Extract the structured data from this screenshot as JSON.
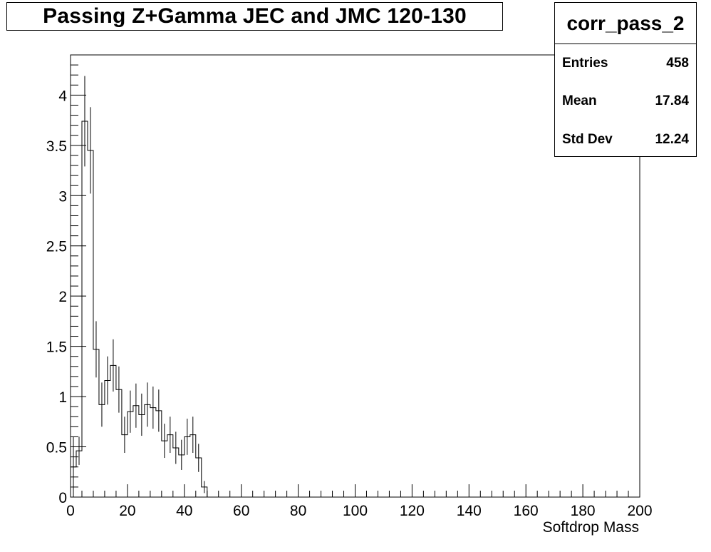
{
  "chart_data": {
    "type": "histogram",
    "title": "Passing Z+Gamma JEC and JMC 120-130",
    "xlabel": "Softdrop Mass",
    "ylabel": "",
    "xlim": [
      0,
      200
    ],
    "ylim": [
      0,
      4.4
    ],
    "bin_width": 2,
    "x_ticks": [
      0,
      20,
      40,
      60,
      80,
      100,
      120,
      140,
      160,
      180,
      200
    ],
    "y_ticks": [
      0,
      0.5,
      1,
      1.5,
      2,
      2.5,
      3,
      3.5,
      4
    ],
    "x_tick_labels": [
      "0",
      "20",
      "40",
      "60",
      "80",
      "100",
      "120",
      "140",
      "160",
      "180",
      "200"
    ],
    "y_tick_labels": [
      "0",
      "0.5",
      "1",
      "1.5",
      "2",
      "2.5",
      "3",
      "3.5",
      "4"
    ],
    "series": [
      {
        "bin_lows": [
          0,
          2,
          4,
          6,
          8,
          10,
          12,
          14,
          16,
          18,
          20,
          22,
          24,
          26,
          28,
          30,
          32,
          34,
          36,
          38,
          40,
          42,
          44,
          46
        ],
        "values": [
          0.3,
          0.46,
          3.74,
          3.45,
          1.47,
          0.92,
          1.16,
          1.31,
          1.07,
          0.62,
          0.85,
          0.91,
          0.82,
          0.92,
          0.89,
          0.86,
          0.56,
          0.62,
          0.49,
          0.42,
          0.6,
          0.62,
          0.39,
          0.1
        ],
        "errors": [
          0.3,
          0.14,
          0.45,
          0.43,
          0.28,
          0.22,
          0.24,
          0.26,
          0.23,
          0.18,
          0.21,
          0.22,
          0.21,
          0.22,
          0.21,
          0.21,
          0.17,
          0.18,
          0.16,
          0.15,
          0.18,
          0.18,
          0.14,
          0.06
        ]
      }
    ]
  },
  "stats": {
    "name": "corr_pass_2",
    "rows": [
      {
        "label": "Entries",
        "value": "458"
      },
      {
        "label": "Mean",
        "value": "17.84"
      },
      {
        "label": "Std Dev",
        "value": "12.24"
      }
    ]
  }
}
